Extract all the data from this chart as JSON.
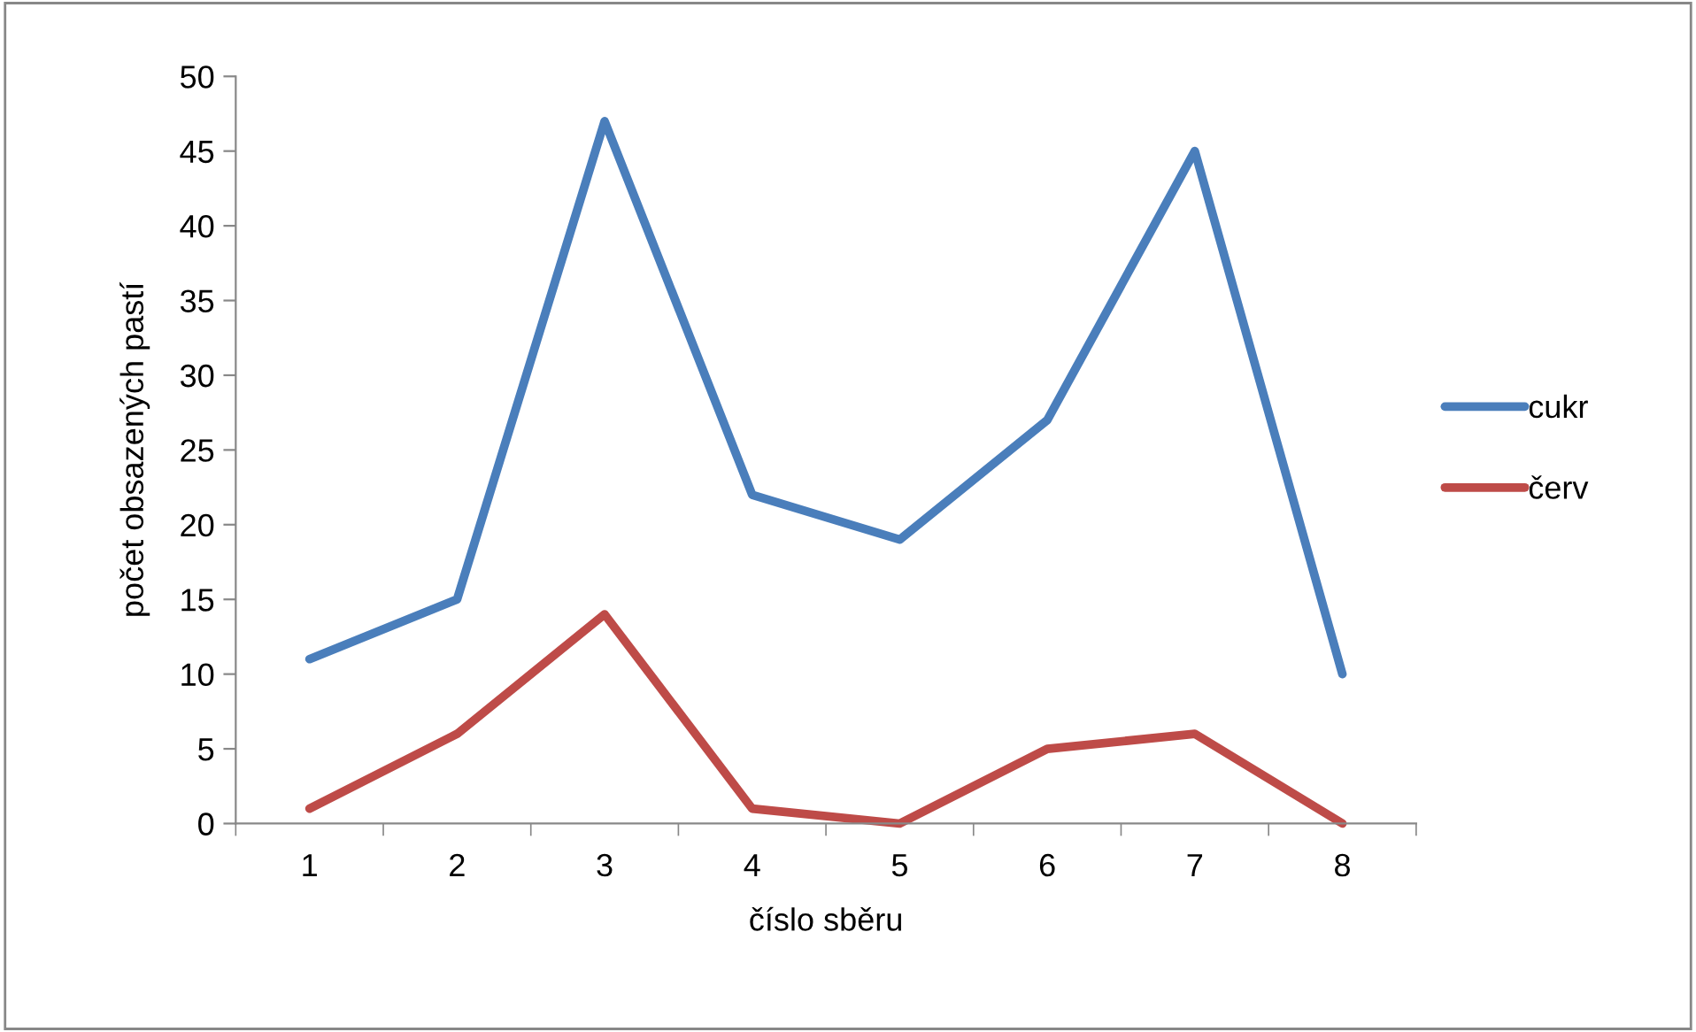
{
  "chart_data": {
    "type": "line",
    "xlabel": "číslo sběru",
    "ylabel": "počet obsazených pastí",
    "categories": [
      "1",
      "2",
      "3",
      "4",
      "5",
      "6",
      "7",
      "8"
    ],
    "series": [
      {
        "name": "cukr",
        "color": "#4a7ebb",
        "values": [
          11,
          15,
          47,
          22,
          19,
          27,
          45,
          10
        ]
      },
      {
        "name": "červ",
        "color": "#be4b48",
        "values": [
          1,
          6,
          14,
          1,
          0,
          5,
          6,
          0
        ]
      }
    ],
    "ylim": [
      0,
      50
    ],
    "yticks": [
      0,
      5,
      10,
      15,
      20,
      25,
      30,
      35,
      40,
      45,
      50
    ],
    "grid": false,
    "legend": "right",
    "marker": "none",
    "line_style": "solid"
  }
}
